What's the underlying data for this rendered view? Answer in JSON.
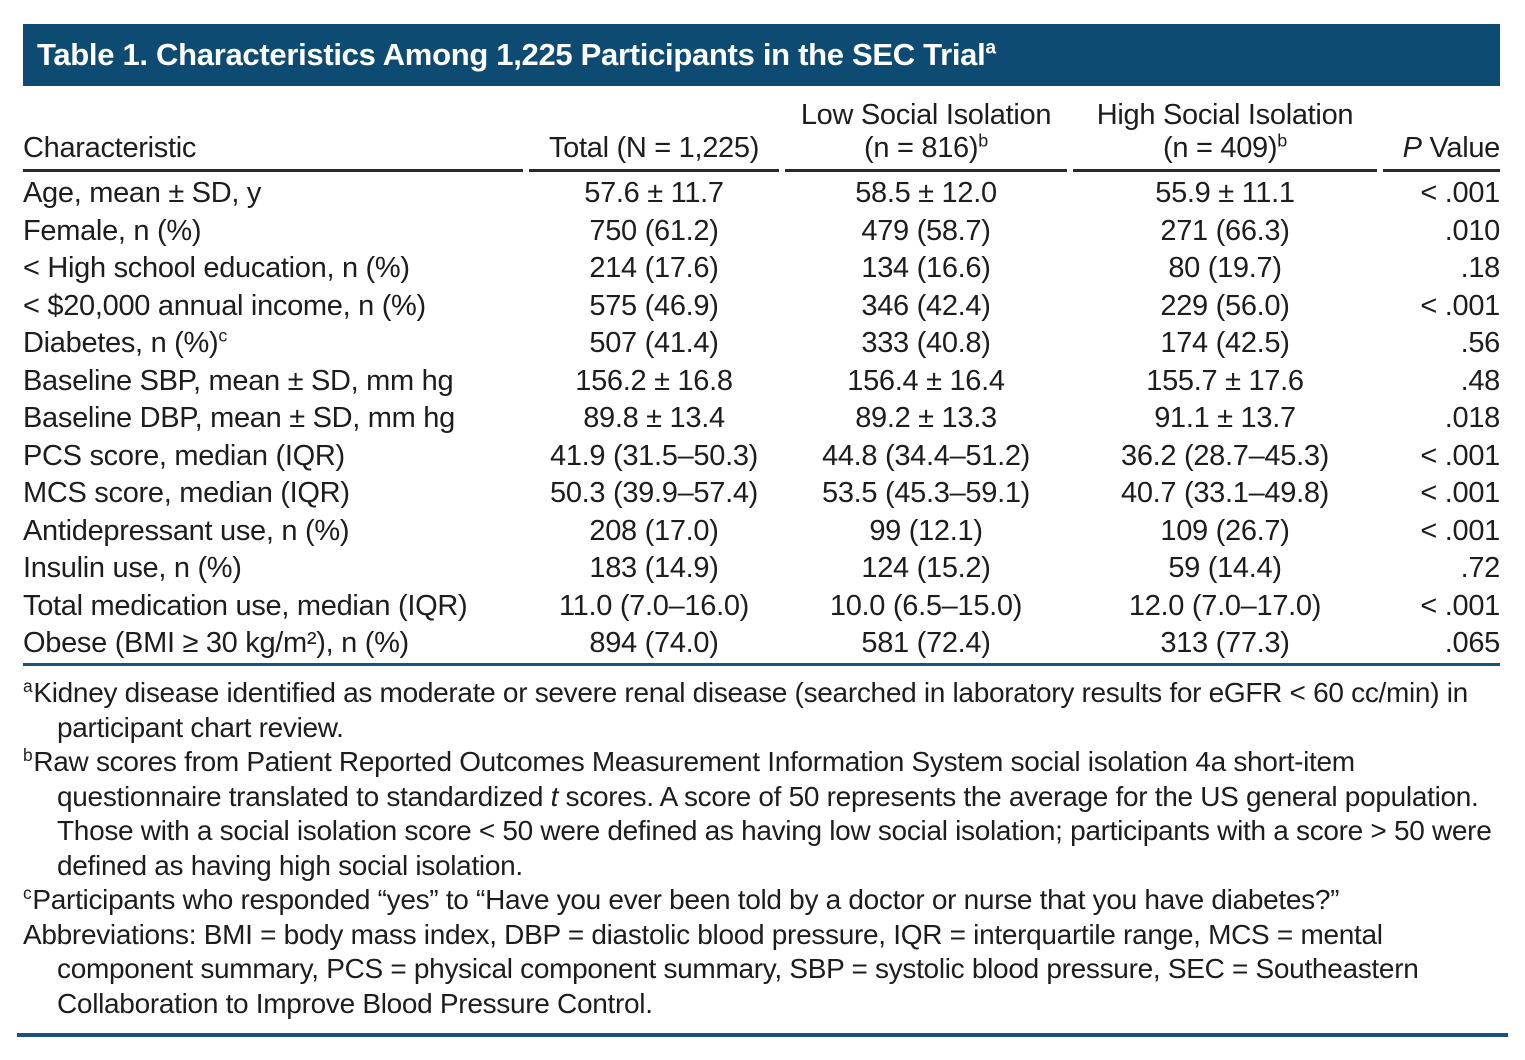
{
  "title": {
    "text": "Table 1. Characteristics Among 1,225 Participants in the SEC Trial",
    "sup": "a"
  },
  "table": {
    "columns": {
      "characteristic": "Characteristic",
      "total": "Total (N = 1,225)",
      "low_line1": "Low Social Isolation",
      "low_line2": "(n = 816)",
      "low_sup": "b",
      "high_line1": "High Social Isolation",
      "high_line2": "(n = 409)",
      "high_sup": "b",
      "p_italic": "P",
      "p_rest": " Value"
    },
    "rows": [
      {
        "label": "Age, mean ± SD, y",
        "total": "57.6 ± 11.7",
        "low": "58.5 ± 12.0",
        "high": "55.9 ± 11.1",
        "p": "< .001"
      },
      {
        "label": "Female, n (%)",
        "total": "750 (61.2)",
        "low": "479 (58.7)",
        "high": "271 (66.3)",
        "p": ".010"
      },
      {
        "label": "< High school education, n (%)",
        "total": "214 (17.6)",
        "low": "134 (16.6)",
        "high": "80 (19.7)",
        "p": ".18"
      },
      {
        "label": "< $20,000 annual income, n (%)",
        "total": "575 (46.9)",
        "low": "346 (42.4)",
        "high": "229 (56.0)",
        "p": "< .001"
      },
      {
        "label": "Diabetes, n (%)",
        "label_sup": "c",
        "total": "507 (41.4)",
        "low": "333 (40.8)",
        "high": "174 (42.5)",
        "p": ".56"
      },
      {
        "label": "Baseline SBP, mean ± SD, mm hg",
        "total": "156.2 ± 16.8",
        "low": "156.4 ± 16.4",
        "high": "155.7 ± 17.6",
        "p": ".48"
      },
      {
        "label": "Baseline DBP, mean ± SD, mm hg",
        "total": "89.8 ± 13.4",
        "low": "89.2 ± 13.3",
        "high": "91.1 ± 13.7",
        "p": ".018"
      },
      {
        "label": "PCS score, median (IQR)",
        "total": "41.9 (31.5–50.3)",
        "low": "44.8 (34.4–51.2)",
        "high": "36.2 (28.7–45.3)",
        "p": "< .001"
      },
      {
        "label": "MCS score, median (IQR)",
        "total": "50.3 (39.9–57.4)",
        "low": "53.5 (45.3–59.1)",
        "high": "40.7 (33.1–49.8)",
        "p": "< .001"
      },
      {
        "label": "Antidepressant use, n (%)",
        "total": "208 (17.0)",
        "low": "99 (12.1)",
        "high": "109 (26.7)",
        "p": "< .001"
      },
      {
        "label": "Insulin use, n (%)",
        "total": "183 (14.9)",
        "low": "124 (15.2)",
        "high": "59 (14.4)",
        "p": ".72"
      },
      {
        "label": "Total medication use, median (IQR)",
        "total": "11.0 (7.0–16.0)",
        "low": "10.0 (6.5–15.0)",
        "high": "12.0 (7.0–17.0)",
        "p": "< .001"
      },
      {
        "label": "Obese (BMI ≥ 30 kg/m²), n (%)",
        "total": "894 (74.0)",
        "low": "581 (72.4)",
        "high": "313 (77.3)",
        "p": ".065"
      }
    ]
  },
  "footnotes": [
    {
      "marker": "a",
      "text": "Kidney disease identified as moderate or severe renal disease (searched in laboratory results for eGFR < 60 cc/min) in participant chart review."
    },
    {
      "marker": "b",
      "parts": [
        {
          "text": "Raw scores from Patient Reported Outcomes Measurement Information System social isolation 4a short-item questionnaire translated to standardized "
        },
        {
          "text": "t",
          "italic": true
        },
        {
          "text": " scores. A score of 50 represents the average for the US general population. Those with a social isolation score < 50 were defined as having low social isolation; participants with a score > 50 were defined as having high social isolation."
        }
      ]
    },
    {
      "marker": "c",
      "text": "Participants who responded “yes” to “Have you ever been told by a doctor or nurse that you have diabetes?”"
    },
    {
      "text": "Abbreviations: BMI = body mass index, DBP = diastolic blood pressure, IQR = interquartile range, MCS = mental component summary, PCS = physical component summary, SBP = systolic blood pressure, SEC = Southeastern Collaboration to Improve Blood Pressure Control."
    }
  ],
  "colors": {
    "title_bar_bg": "#0e4b72",
    "title_text": "#ffffff",
    "header_rule": "#2a2a2c",
    "blue_rule": "#16547c",
    "body_text": "#1d1d1f"
  }
}
